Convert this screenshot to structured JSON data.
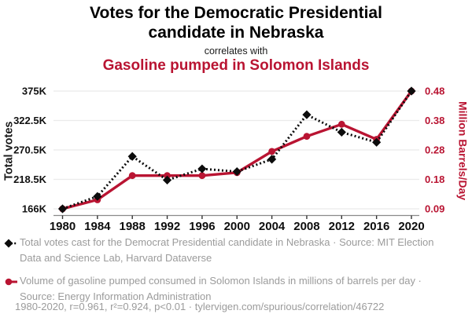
{
  "header": {
    "title": "Votes for the Democratic Presidential candidate in Nebraska",
    "connector": "correlates with",
    "subtitle": "Gasoline pumped in Solomon Islands",
    "title_color": "#000000",
    "subtitle_color": "#b91432"
  },
  "chart_data": {
    "type": "line",
    "x_labels": [
      "1980",
      "1984",
      "1988",
      "1992",
      "1996",
      "2000",
      "2004",
      "2008",
      "2012",
      "2016",
      "2020"
    ],
    "left_axis": {
      "label": "Total votes",
      "ticks": [
        "166K",
        "218.5K",
        "270.5K",
        "322.5K",
        "375K"
      ],
      "range": [
        166000,
        375000
      ],
      "color": "#111111"
    },
    "right_axis": {
      "label": "Million Barrels/Day",
      "ticks": [
        "0.09",
        "0.18",
        "0.28",
        "0.38",
        "0.48"
      ],
      "range": [
        0.09,
        0.48
      ],
      "color": "#b91432"
    },
    "series": [
      {
        "name": "Total votes cast for the Democrat Presidential candidate in Nebraska",
        "axis": "left",
        "color": "#0c0c0c",
        "style": "dashed",
        "marker": "diamond",
        "values": [
          166000,
          188000,
          259000,
          217000,
          237000,
          232000,
          254000,
          333000,
          302000,
          284000,
          375000
        ]
      },
      {
        "name": "Volume of gasoline pumped consumed in Solomon Islands (million barrels/day)",
        "axis": "right",
        "color": "#b91432",
        "style": "solid",
        "marker": "circle",
        "values": [
          0.09,
          0.12,
          0.2,
          0.2,
          0.2,
          0.21,
          0.28,
          0.33,
          0.37,
          0.32,
          0.48
        ]
      }
    ],
    "grid": "horizontal-only",
    "legend_position": "below"
  },
  "legend": {
    "text_color": "#9b9b9b",
    "entries": [
      {
        "marker": "black-diamond-dashed",
        "label": "Total votes cast for the Democrat Presidential candidate in Nebraska · Source: MIT Election Data and Science Lab, Harvard Dataverse"
      },
      {
        "marker": "red-circle-solid",
        "label": "Volume of gasoline pumped consumed in Solomon Islands in millions of barrels per day · Source: Energy Information Administration"
      }
    ]
  },
  "footer": {
    "stats": "1980-2020, r=0.961, r²=0.924, p<0.01 · tylervigen.com/spurious/correlation/46722"
  }
}
